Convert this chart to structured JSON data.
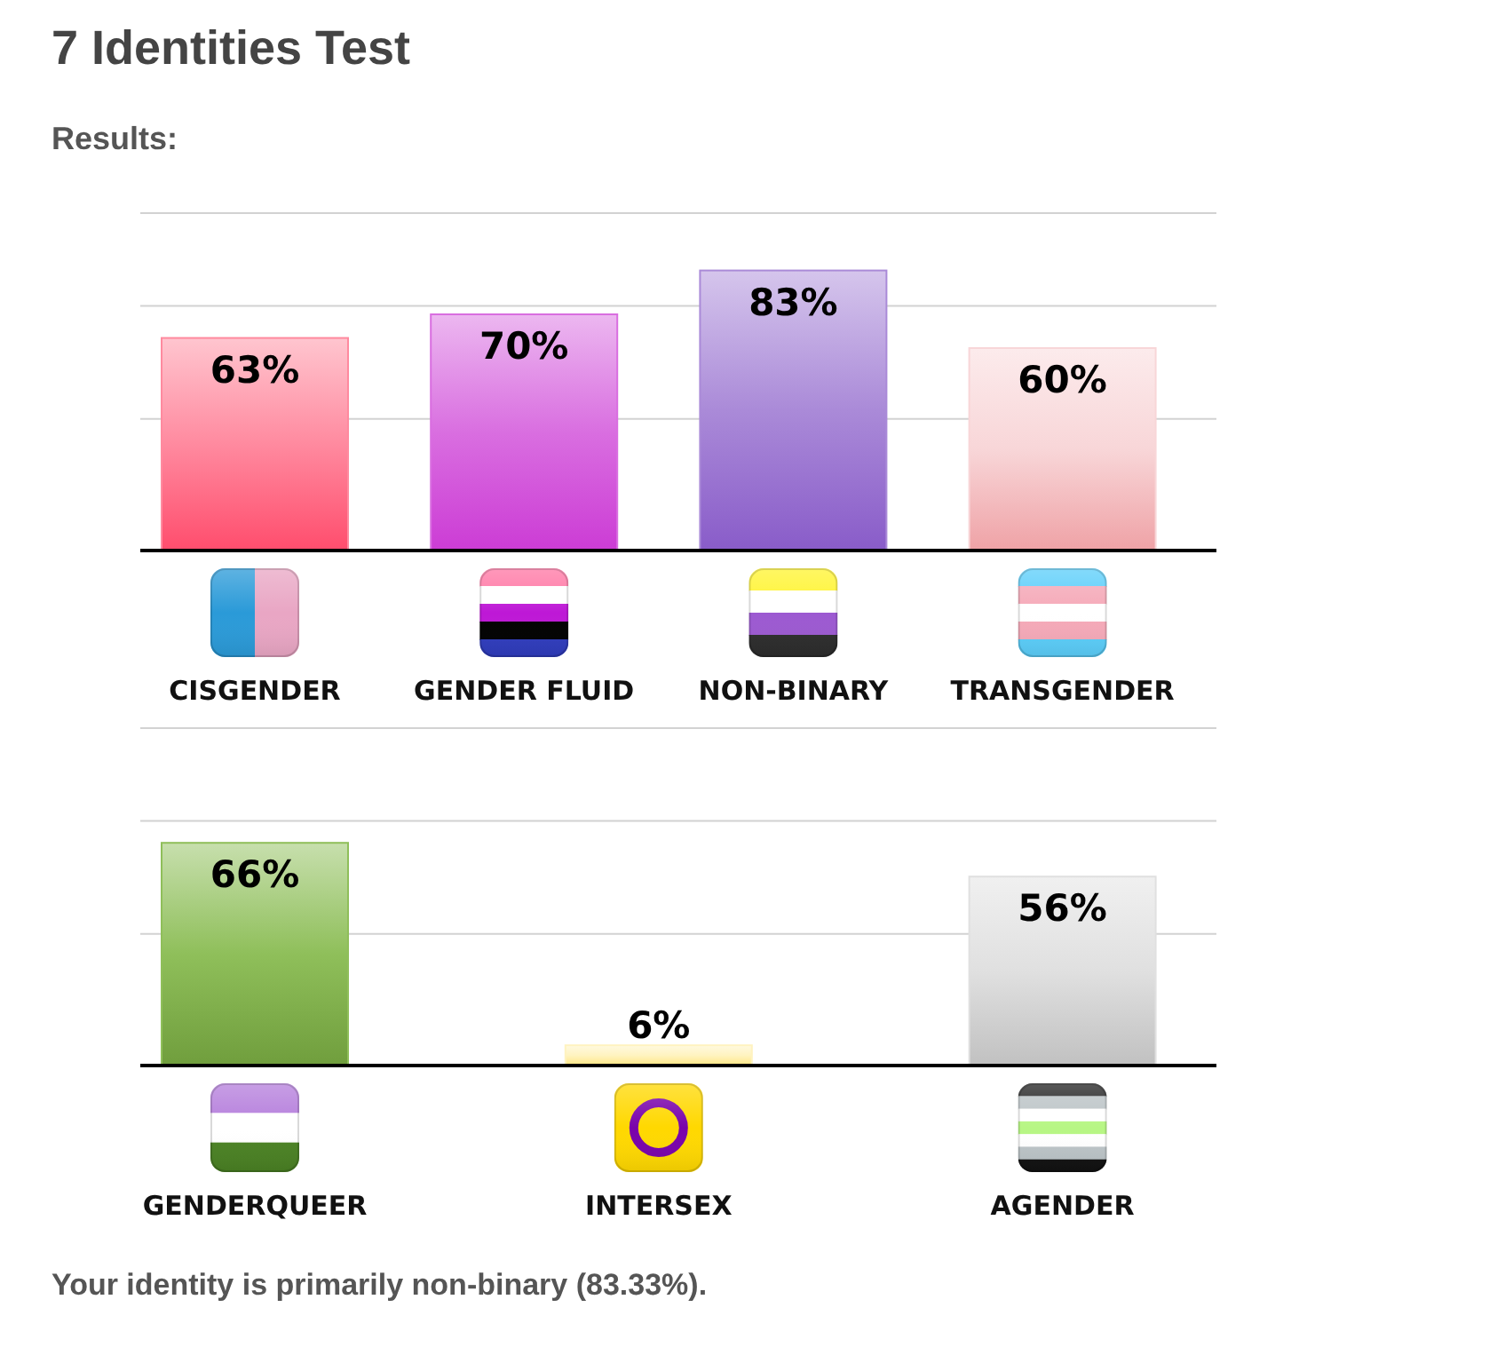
{
  "chart_data": [
    {
      "type": "bar",
      "title": "7 Identities Test",
      "subtitle": "Results:",
      "categories": [
        "CISGENDER",
        "GENDER FLUID",
        "NON-BINARY",
        "TRANSGENDER"
      ],
      "values": [
        63,
        70,
        83,
        60
      ],
      "colors": [
        "#ff8a9f",
        "#d96ee0",
        "#aa8ad8",
        "#f8d6d8"
      ],
      "value_labels": [
        "63%",
        "70%",
        "83%",
        "60%"
      ],
      "ylim": [
        0,
        100
      ],
      "yticks": [
        {
          "value": 39,
          "label": null
        },
        {
          "value": 72.5,
          "label": null
        },
        {
          "value": 100,
          "label": null
        }
      ],
      "grid": "y",
      "tick_labels": "x"
    },
    {
      "type": "bar",
      "categories": [
        "GENDERQUEER",
        "INTERSEX",
        "AGENDER"
      ],
      "values": [
        66,
        6,
        56
      ],
      "colors": [
        "#8fbf5a",
        "#fff3c0",
        "#e0e0e0"
      ],
      "value_labels": [
        "66%",
        "6%",
        "56%"
      ],
      "ylim": [
        0,
        100
      ],
      "yticks": [
        {
          "value": 39,
          "label": null
        },
        {
          "value": 72.5,
          "label": null
        },
        {
          "value": 100,
          "label": null
        }
      ],
      "grid": "y",
      "tick_labels": "x",
      "annotations": [
        "Your identity is primarily non-binary (83.33%)."
      ]
    }
  ]
}
